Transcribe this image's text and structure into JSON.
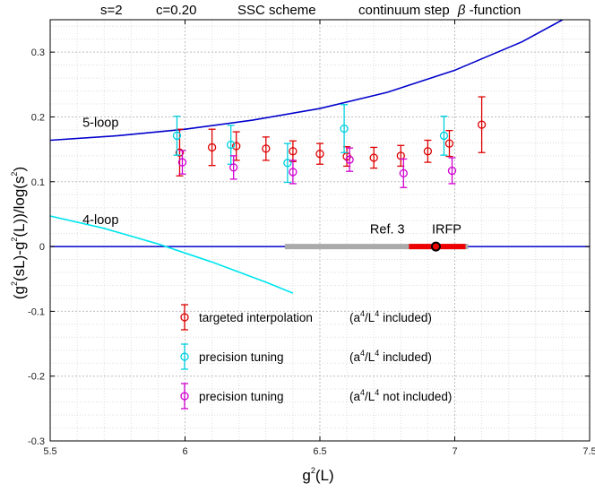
{
  "chart_data": {
    "type": "scatter",
    "title": {
      "s": "s=2",
      "c": "c=0.20",
      "scheme": "SSC scheme",
      "step_pre": "continuum step",
      "beta": "β",
      "step_post": "-function"
    },
    "xlabel": {
      "base": "g",
      "sup": "2",
      "rest": "(L)"
    },
    "ylabel": {
      "p1": "(g",
      "s1": "2",
      "p2": "(sL)-g",
      "s2": "2",
      "p3": "(L))/log(s",
      "s3": "2",
      "p4": ")"
    },
    "xlim": [
      5.5,
      7.5
    ],
    "ylim": [
      -0.3,
      0.35
    ],
    "x_ticks": [
      5.5,
      6,
      6.5,
      7,
      7.5
    ],
    "x_tick_labels": [
      "5.5",
      "6",
      "6.5",
      "7",
      "7.5"
    ],
    "y_ticks": [
      -0.3,
      -0.2,
      -0.1,
      0,
      0.1,
      0.2,
      0.3
    ],
    "y_tick_labels": [
      "-0.3",
      "-0.2",
      "-0.1",
      "0",
      "0.1",
      "0.2",
      "0.3"
    ],
    "grid": true,
    "curves": [
      {
        "name": "5-loop",
        "color": "#0000cc",
        "x": [
          5.5,
          5.75,
          6.0,
          6.25,
          6.5,
          6.75,
          7.0,
          7.25,
          7.4
        ],
        "y": [
          0.164,
          0.171,
          0.181,
          0.195,
          0.213,
          0.238,
          0.272,
          0.316,
          0.35
        ]
      },
      {
        "name": "4-loop",
        "color": "#00e5ee",
        "x": [
          5.5,
          5.7,
          5.9,
          6.1,
          6.3,
          6.4
        ],
        "y": [
          0.047,
          0.028,
          0.004,
          -0.024,
          -0.055,
          -0.072
        ]
      }
    ],
    "curve_labels": [
      {
        "text": "5-loop",
        "x": 5.62,
        "y": 0.185
      },
      {
        "text": "4-loop",
        "x": 5.62,
        "y": 0.035
      }
    ],
    "zero_line_color": "#0000cc",
    "bands": [
      {
        "name": "Ref. 3",
        "x_from": 6.37,
        "x_to": 7.05,
        "y": 0,
        "color": "#aaaaaa"
      },
      {
        "name": "IRFP",
        "x_from": 6.83,
        "x_to": 7.04,
        "y": 0,
        "color": "#ee0000",
        "point": 6.93
      }
    ],
    "band_labels": [
      {
        "text": "Ref. 3",
        "x": 6.75,
        "y": 0.02
      },
      {
        "text": "IRFP",
        "x": 6.97,
        "y": 0.02
      }
    ],
    "series": [
      {
        "name": "targeted interpolation",
        "note": "included",
        "color": "#dd0000",
        "x": [
          5.98,
          6.1,
          6.19,
          6.3,
          6.4,
          6.5,
          6.6,
          6.7,
          6.8,
          6.9,
          6.98,
          7.1
        ],
        "y": [
          0.145,
          0.153,
          0.155,
          0.151,
          0.147,
          0.143,
          0.139,
          0.137,
          0.14,
          0.147,
          0.159,
          0.188
        ],
        "err": [
          0.036,
          0.028,
          0.022,
          0.018,
          0.016,
          0.016,
          0.015,
          0.016,
          0.016,
          0.017,
          0.02,
          0.043
        ]
      },
      {
        "name": "precision tuning",
        "note": "included",
        "color": "#00d0e0",
        "x": [
          5.97,
          6.17,
          6.38,
          6.59,
          6.96
        ],
        "y": [
          0.171,
          0.157,
          0.129,
          0.182,
          0.171
        ],
        "err": [
          0.03,
          0.03,
          0.03,
          0.037,
          0.03
        ]
      },
      {
        "name": "precision tuning",
        "note": "not included",
        "color": "#d000d0",
        "x": [
          5.99,
          6.18,
          6.4,
          6.61,
          6.81,
          6.99
        ],
        "y": [
          0.13,
          0.122,
          0.115,
          0.134,
          0.113,
          0.117
        ],
        "err": [
          0.018,
          0.018,
          0.018,
          0.018,
          0.022,
          0.02
        ]
      }
    ],
    "legend": {
      "placement": "bottom-center",
      "paren_open": "(a",
      "sup1": "4",
      "mid": "/L",
      "sup2": "4",
      "paren_close": ")"
    }
  }
}
